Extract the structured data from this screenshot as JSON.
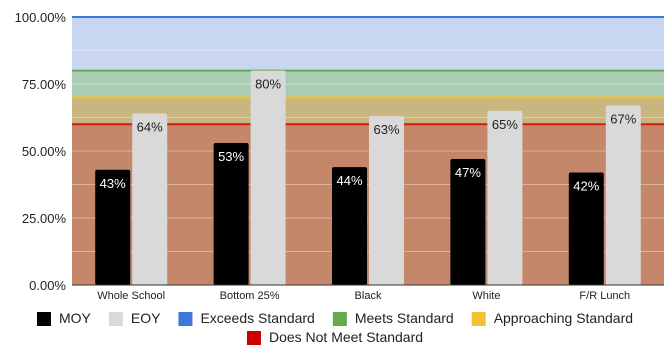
{
  "chart_data": {
    "type": "bar",
    "categories": [
      "Whole School",
      "Bottom 25%",
      "Black",
      "White",
      "F/R Lunch"
    ],
    "series": [
      {
        "name": "MOY",
        "values": [
          43,
          53,
          44,
          47,
          42
        ],
        "color": "#000000",
        "labels": [
          "43%",
          "53%",
          "44%",
          "47%",
          "42%"
        ]
      },
      {
        "name": "EOY",
        "values": [
          64,
          80,
          63,
          65,
          67
        ],
        "color": "#d9d9d9",
        "labels": [
          "64%",
          "80%",
          "63%",
          "65%",
          "67%"
        ]
      }
    ],
    "ylim": [
      0,
      100
    ],
    "y_ticks": [
      {
        "value": 0,
        "label": "0.00%"
      },
      {
        "value": 25,
        "label": "25.00%"
      },
      {
        "value": 50,
        "label": "50.00%"
      },
      {
        "value": 75,
        "label": "75.00%"
      },
      {
        "value": 100,
        "label": "100.00%"
      }
    ],
    "bands": [
      {
        "name": "Does Not Meet Standard",
        "from": 0,
        "to": 60,
        "fill": "#c5876a",
        "line": "#d61a1a"
      },
      {
        "name": "Approaching Standard",
        "from": 60,
        "to": 70,
        "fill": "#c8b57f",
        "line": "#f1c232"
      },
      {
        "name": "Meets Standard",
        "from": 70,
        "to": 80,
        "fill": "#a9ccb2",
        "line": "#6aa84f"
      },
      {
        "name": "Exceeds Standard",
        "from": 80,
        "to": 100,
        "fill": "#c8d6f2",
        "line": "#3c78d8"
      }
    ],
    "grid": true,
    "legend_position": "bottom",
    "legend": [
      {
        "name": "MOY",
        "color": "#000000"
      },
      {
        "name": "EOY",
        "color": "#d9d9d9"
      },
      {
        "name": "Exceeds Standard",
        "color": "#3c78d8"
      },
      {
        "name": "Meets Standard",
        "color": "#6aa84f"
      },
      {
        "name": "Approaching Standard",
        "color": "#f1c232"
      },
      {
        "name": "Does Not Meet Standard",
        "color": "#cc0000"
      }
    ]
  }
}
